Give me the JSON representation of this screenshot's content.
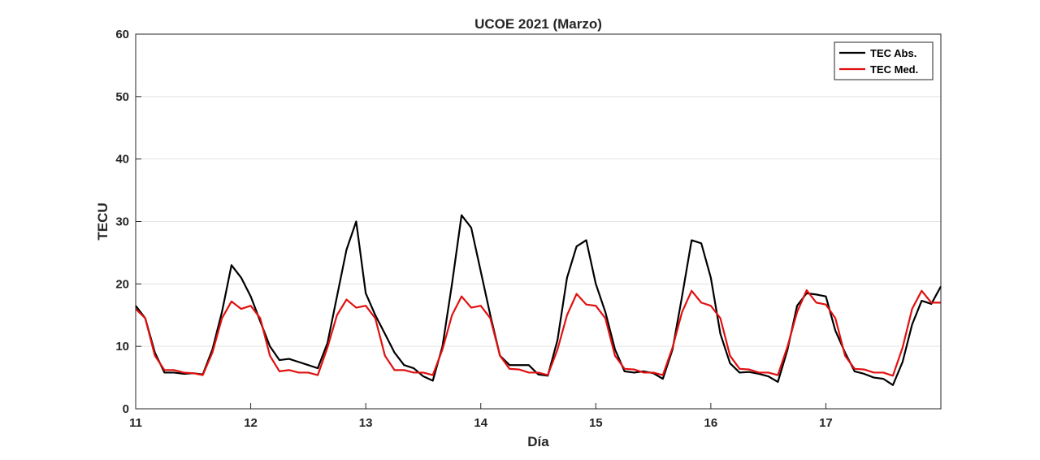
{
  "chart_data": {
    "type": "line",
    "title": "UCOE 2021 (Marzo)",
    "xlabel": "Día",
    "ylabel": "TECU",
    "xlim": [
      11,
      18
    ],
    "ylim": [
      0,
      60
    ],
    "xticks": [
      11,
      12,
      13,
      14,
      15,
      16,
      17
    ],
    "yticks": [
      0,
      10,
      20,
      30,
      40,
      50,
      60
    ],
    "grid": "horizontal",
    "legend_position": "top-right",
    "x": [
      11.0,
      11.083,
      11.167,
      11.25,
      11.333,
      11.417,
      11.5,
      11.583,
      11.667,
      11.75,
      11.833,
      11.917,
      12.0,
      12.083,
      12.167,
      12.25,
      12.333,
      12.417,
      12.5,
      12.583,
      12.667,
      12.75,
      12.833,
      12.917,
      13.0,
      13.083,
      13.167,
      13.25,
      13.333,
      13.417,
      13.5,
      13.583,
      13.667,
      13.75,
      13.833,
      13.917,
      14.0,
      14.083,
      14.167,
      14.25,
      14.333,
      14.417,
      14.5,
      14.583,
      14.667,
      14.75,
      14.833,
      14.917,
      15.0,
      15.083,
      15.167,
      15.25,
      15.333,
      15.417,
      15.5,
      15.583,
      15.667,
      15.75,
      15.833,
      15.917,
      16.0,
      16.083,
      16.167,
      16.25,
      16.333,
      16.417,
      16.5,
      16.583,
      16.667,
      16.75,
      16.833,
      16.917,
      17.0,
      17.083,
      17.167,
      17.25,
      17.333,
      17.417,
      17.5,
      17.583,
      17.667,
      17.75,
      17.833,
      17.917,
      18.0
    ],
    "series": [
      {
        "name": "TEC Abs.",
        "color": "#000000",
        "values": [
          16.5,
          14.5,
          9.0,
          5.8,
          5.8,
          5.6,
          5.7,
          5.5,
          9.5,
          15.5,
          23.0,
          21.0,
          18.0,
          14.0,
          10.0,
          7.8,
          8.0,
          7.5,
          7.0,
          6.5,
          10.5,
          18.0,
          25.5,
          30.0,
          18.5,
          15.0,
          12.0,
          9.0,
          7.0,
          6.5,
          5.2,
          4.5,
          10.0,
          20.0,
          31.0,
          29.0,
          22.0,
          15.0,
          8.5,
          7.0,
          7.0,
          7.0,
          5.5,
          5.3,
          11.0,
          21.0,
          26.0,
          27.0,
          20.0,
          15.5,
          9.5,
          6.0,
          5.8,
          6.0,
          5.7,
          4.8,
          9.5,
          18.0,
          27.0,
          26.5,
          21.0,
          12.0,
          7.3,
          5.8,
          5.9,
          5.6,
          5.2,
          4.3,
          9.5,
          16.5,
          18.5,
          18.3,
          18.0,
          12.5,
          9.0,
          6.0,
          5.6,
          5.0,
          4.8,
          3.8,
          7.5,
          13.5,
          17.3,
          16.8,
          19.6
        ]
      },
      {
        "name": "TEC Med.",
        "color": "#e01010",
        "values": [
          16.0,
          14.5,
          8.5,
          6.2,
          6.2,
          5.8,
          5.7,
          5.4,
          9.0,
          14.5,
          17.2,
          16.0,
          16.5,
          14.5,
          8.5,
          6.0,
          6.2,
          5.8,
          5.8,
          5.4,
          9.8,
          15.0,
          17.5,
          16.2,
          16.5,
          14.5,
          8.5,
          6.2,
          6.2,
          5.8,
          5.8,
          5.4,
          9.5,
          15.0,
          18.0,
          16.2,
          16.5,
          14.5,
          8.5,
          6.4,
          6.3,
          5.8,
          5.8,
          5.4,
          9.5,
          15.0,
          18.4,
          16.7,
          16.5,
          14.5,
          8.5,
          6.4,
          6.3,
          5.8,
          5.8,
          5.4,
          9.8,
          15.5,
          18.9,
          17.0,
          16.5,
          14.5,
          8.5,
          6.4,
          6.3,
          5.8,
          5.8,
          5.4,
          10.0,
          15.5,
          19.0,
          17.0,
          16.7,
          14.5,
          8.5,
          6.4,
          6.3,
          5.8,
          5.8,
          5.3,
          9.8,
          16.0,
          18.9,
          17.0,
          17.0
        ]
      }
    ]
  }
}
